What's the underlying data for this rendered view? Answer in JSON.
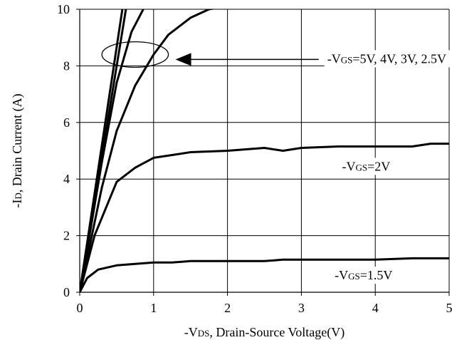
{
  "chart_data": {
    "type": "line",
    "title": "",
    "xlabel": {
      "prefix": "-V",
      "sub": "DS",
      "suffix": ", Drain-Source Voltage(V)"
    },
    "ylabel": {
      "prefix": "-I",
      "sub": "D",
      "suffix": ", Drain Current (A)"
    },
    "xlim": [
      0,
      5
    ],
    "ylim": [
      0,
      10
    ],
    "xticks": [
      "0",
      "1",
      "2",
      "3",
      "4",
      "5"
    ],
    "yticks": [
      "0",
      "2",
      "4",
      "6",
      "8",
      "10"
    ],
    "grid": true,
    "series": [
      {
        "x": [
          0,
          0.6
        ],
        "y": [
          0,
          10.4
        ]
      },
      {
        "x": [
          0,
          0.65
        ],
        "y": [
          0,
          10.4
        ]
      },
      {
        "x": [
          0,
          0.1,
          0.3,
          0.5,
          0.7,
          0.9,
          1.0
        ],
        "y": [
          0,
          1.5,
          4.6,
          7.4,
          9.2,
          10.2,
          10.4
        ]
      },
      {
        "x": [
          0,
          0.1,
          0.3,
          0.5,
          0.75,
          1.0,
          1.2,
          1.5,
          1.75,
          2.0
        ],
        "y": [
          0,
          1.2,
          3.7,
          5.7,
          7.3,
          8.4,
          9.1,
          9.7,
          10.0,
          10.1
        ]
      },
      {
        "x": [
          0,
          0.2,
          0.5,
          0.75,
          1.0,
          1.25,
          1.5,
          2.0,
          2.25,
          2.5,
          2.75,
          3.0,
          3.5,
          4.0,
          4.5,
          4.75,
          5.0
        ],
        "y": [
          0,
          2.0,
          3.9,
          4.4,
          4.75,
          4.85,
          4.95,
          5.0,
          5.05,
          5.1,
          5.0,
          5.1,
          5.15,
          5.15,
          5.15,
          5.25,
          5.25
        ]
      },
      {
        "x": [
          0,
          0.1,
          0.25,
          0.5,
          0.75,
          1.0,
          1.25,
          1.5,
          1.75,
          2.0,
          2.5,
          2.75,
          3.0,
          3.5,
          4.0,
          4.5,
          5.0
        ],
        "y": [
          0,
          0.5,
          0.8,
          0.95,
          1.0,
          1.05,
          1.05,
          1.1,
          1.1,
          1.1,
          1.1,
          1.15,
          1.15,
          1.15,
          1.15,
          1.2,
          1.2
        ]
      }
    ],
    "annotations": [
      {
        "label_prefix": "-V",
        "label_sub": "GS",
        "label_suffix": "=5V, 4V, 3V, 2.5V",
        "x": 3.35,
        "y": 8.1,
        "arrow": true
      },
      {
        "label_prefix": "-V",
        "label_sub": "GS",
        "label_suffix": "=2V",
        "x": 3.55,
        "y": 4.3
      },
      {
        "label_prefix": "-V",
        "label_sub": "GS",
        "label_suffix": "=1.5V",
        "x": 3.45,
        "y": 0.45
      }
    ],
    "ellipse": {
      "cx": 0.75,
      "cy": 8.4,
      "rx": 0.45,
      "ry": 0.45
    }
  }
}
